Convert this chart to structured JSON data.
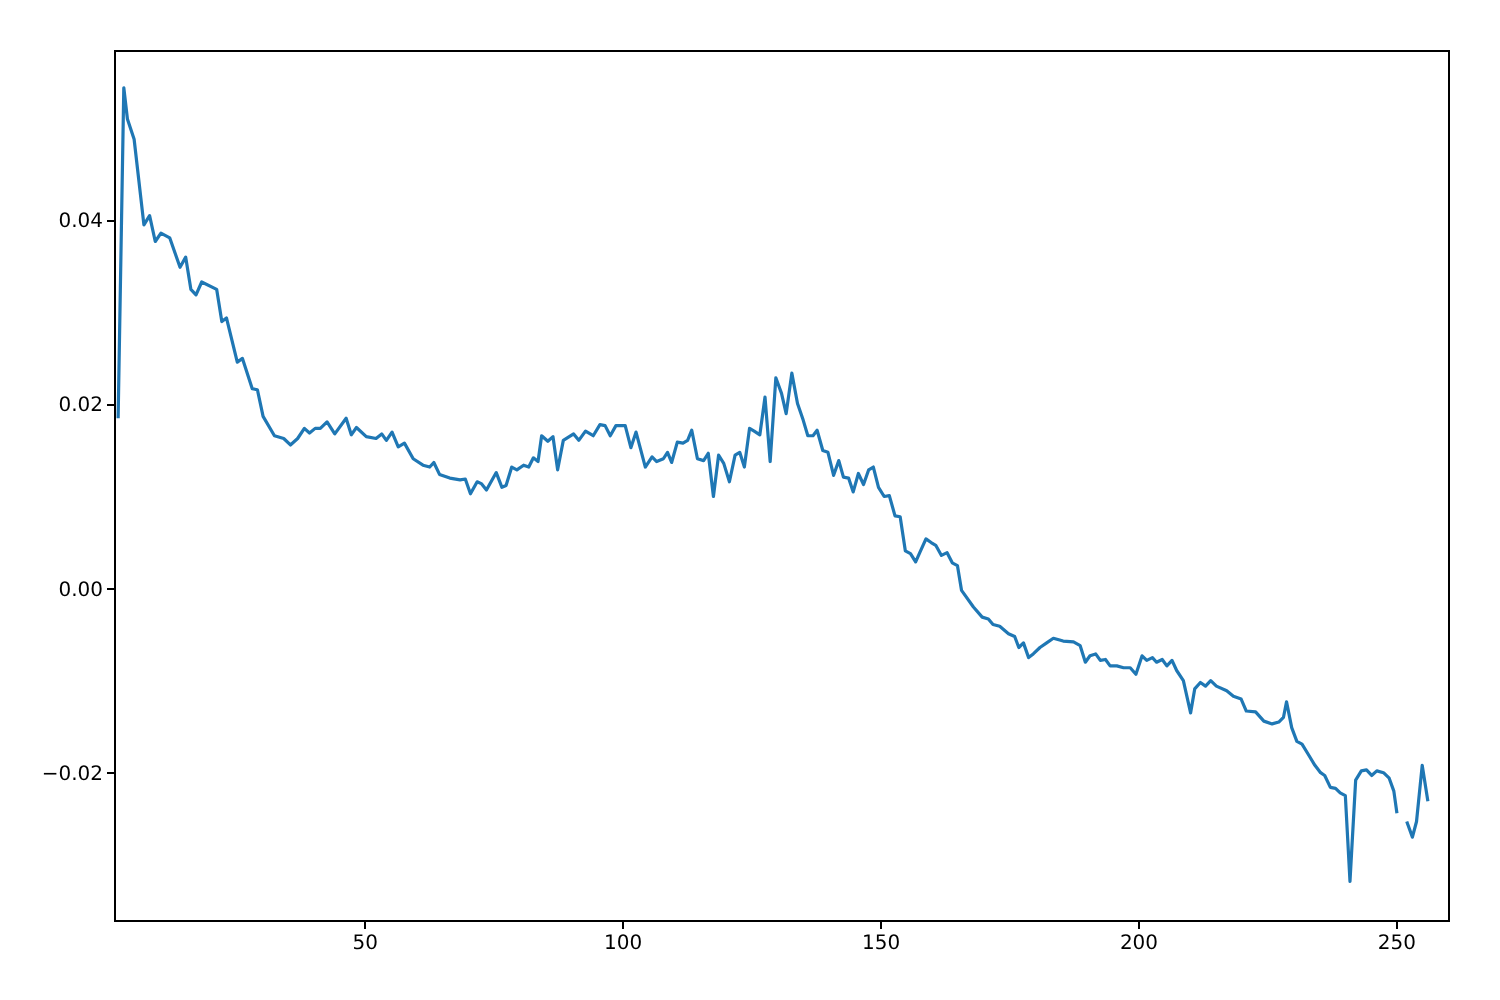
{
  "chart_data": {
    "type": "line",
    "x": [
      2.3,
      3.4,
      4.1,
      5.4,
      7.3,
      8.4,
      9.5,
      10.6,
      12.3,
      14.3,
      15.4,
      16.4,
      17.4,
      18.5,
      21.4,
      22.4,
      23.3,
      25.4,
      26.4,
      28.3,
      29.3,
      30.4,
      32.6,
      34.4,
      35.7,
      37.1,
      38.4,
      39.4,
      40.5,
      41.5,
      42.8,
      44.3,
      46.5,
      47.5,
      48.5,
      50.4,
      52.3,
      53.4,
      54.3,
      55.4,
      56.6,
      57.8,
      59.5,
      61.4,
      62.7,
      63.5,
      64.6,
      66.6,
      68.6,
      69.6,
      70.6,
      71.9,
      72.7,
      73.7,
      75.6,
      76.7,
      77.5,
      78.6,
      79.6,
      80.9,
      81.9,
      82.8,
      83.7,
      84.4,
      85.6,
      86.6,
      87.5,
      88.6,
      90.6,
      91.6,
      92.9,
      94.4,
      95.7,
      96.7,
      97.7,
      98.8,
      100.6,
      101.7,
      102.7,
      104.5,
      105.8,
      106.7,
      108,
      108.8,
      109.6,
      110.7,
      111.8,
      112.7,
      113.5,
      114.6,
      115.8,
      116.7,
      117.7,
      118.7,
      119.7,
      120.8,
      121.9,
      122.8,
      123.7,
      124.7,
      125.6,
      126.7,
      127.7,
      128.7,
      129.8,
      130.9,
      131.8,
      132.9,
      134,
      135.1,
      136,
      137,
      137.8,
      138.9,
      139.9,
      141,
      142,
      142.9,
      143.9,
      144.8,
      145.8,
      146.8,
      147.8,
      148.7,
      149.7,
      150.8,
      151.8,
      152.9,
      153.9,
      154.9,
      155.9,
      156.9,
      157.7,
      158.9,
      159.9,
      160.8,
      161.9,
      163,
      164,
      165,
      165.8,
      168.1,
      169.8,
      171,
      171.9,
      173.2,
      174.9,
      176.1,
      176.9,
      177.8,
      178.8,
      179.7,
      181,
      182.3,
      183.6,
      185.5,
      187.5,
      188.8,
      189.8,
      190.7,
      191.8,
      192.7,
      193.7,
      194.6,
      195.9,
      197.2,
      198.5,
      199.6,
      200.8,
      201.7,
      202.8,
      203.6,
      204.7,
      205.6,
      206.6,
      207.5,
      208.8,
      210.2,
      211,
      212.1,
      213.1,
      214.1,
      215.2,
      217.2,
      218.5,
      220,
      221,
      222.8,
      224.4,
      226,
      227.3,
      228.2,
      228.8,
      229.8,
      230.8,
      231.8,
      233,
      234.3,
      235.4,
      236.2,
      237.3,
      238.3,
      239.2,
      240.2,
      241.1,
      242.2,
      243.3,
      244.3,
      245.3,
      246.3,
      247.6,
      248.7,
      249.6,
      250.2,
      251.1,
      252.1,
      253.2,
      254,
      255.1,
      256.2
    ],
    "series": [
      {
        "color": "#1f77b4",
        "values": [
          0.0185,
          0.0544,
          0.051,
          0.0488,
          0.0395,
          0.0405,
          0.0377,
          0.0386,
          0.0381,
          0.0349,
          0.036,
          0.0325,
          0.0319,
          0.0333,
          0.0325,
          0.029,
          0.0294,
          0.0246,
          0.025,
          0.0217,
          0.0216,
          0.0187,
          0.0166,
          0.0163,
          0.0156,
          0.0163,
          0.0174,
          0.0169,
          0.0174,
          0.0174,
          0.0181,
          0.0168,
          0.0185,
          0.0167,
          0.0175,
          0.0165,
          0.0163,
          0.0168,
          0.0161,
          0.017,
          0.0154,
          0.0158,
          0.0141,
          0.0134,
          0.0132,
          0.0137,
          0.0124,
          0.012,
          0.0118,
          0.0119,
          0.0103,
          0.0116,
          0.0114,
          0.0107,
          0.0126,
          0.011,
          0.0112,
          0.0132,
          0.0129,
          0.0134,
          0.0132,
          0.0142,
          0.0138,
          0.0166,
          0.016,
          0.0165,
          0.0129,
          0.0161,
          0.0168,
          0.0161,
          0.0171,
          0.0166,
          0.0178,
          0.0177,
          0.0166,
          0.0177,
          0.0177,
          0.0153,
          0.017,
          0.0132,
          0.0143,
          0.0138,
          0.0141,
          0.0148,
          0.0137,
          0.0159,
          0.0158,
          0.0161,
          0.0172,
          0.0141,
          0.0139,
          0.0147,
          0.01,
          0.0145,
          0.0136,
          0.0116,
          0.0145,
          0.0148,
          0.0132,
          0.0174,
          0.0171,
          0.0167,
          0.0208,
          0.0138,
          0.0229,
          0.0212,
          0.019,
          0.0234,
          0.0201,
          0.0183,
          0.0166,
          0.0166,
          0.0172,
          0.015,
          0.0148,
          0.0123,
          0.0139,
          0.0121,
          0.012,
          0.0105,
          0.0125,
          0.0113,
          0.0129,
          0.0132,
          0.011,
          0.01,
          0.0101,
          0.0079,
          0.0078,
          0.0041,
          0.0038,
          0.0029,
          0.0039,
          0.0054,
          0.005,
          0.0047,
          0.0036,
          0.0039,
          0.0028,
          0.0025,
          -0.0002,
          -0.002,
          -0.0031,
          -0.0033,
          -0.0039,
          -0.0041,
          -0.0049,
          -0.0052,
          -0.0064,
          -0.0059,
          -0.0075,
          -0.0071,
          -0.0064,
          -0.0059,
          -0.0054,
          -0.0057,
          -0.0058,
          -0.0062,
          -0.008,
          -0.0073,
          -0.0071,
          -0.0078,
          -0.0077,
          -0.0084,
          -0.0084,
          -0.0086,
          -0.0086,
          -0.0093,
          -0.0073,
          -0.0078,
          -0.0075,
          -0.008,
          -0.0077,
          -0.0084,
          -0.0078,
          -0.0089,
          -0.01,
          -0.0135,
          -0.0109,
          -0.0102,
          -0.0106,
          -0.01,
          -0.0106,
          -0.0111,
          -0.0117,
          -0.012,
          -0.0133,
          -0.0134,
          -0.0144,
          -0.0147,
          -0.0145,
          -0.014,
          -0.0123,
          -0.0151,
          -0.0166,
          -0.0169,
          -0.018,
          -0.0192,
          -0.02,
          -0.0203,
          -0.0216,
          -0.0217,
          -0.0222,
          -0.0225,
          -0.0318,
          -0.0208,
          -0.0198,
          -0.0197,
          -0.0203,
          -0.0198,
          -0.02,
          -0.0206,
          -0.022,
          -0.0244,
          null,
          -0.0253,
          -0.027,
          -0.0253,
          -0.0192,
          -0.0231
        ]
      }
    ],
    "xlim": [
      1.5,
      260.1
    ],
    "ylim": [
      -0.036,
      0.0585
    ],
    "xticks": [
      50,
      100,
      150,
      200,
      250
    ],
    "yticks": [
      {
        "value": -0.02,
        "label": "−0.02"
      },
      {
        "value": 0.0,
        "label": "0.00"
      },
      {
        "value": 0.02,
        "label": "0.02"
      },
      {
        "value": 0.04,
        "label": "0.04"
      }
    ],
    "grid": false,
    "marker": "none",
    "line_style": "solid"
  }
}
